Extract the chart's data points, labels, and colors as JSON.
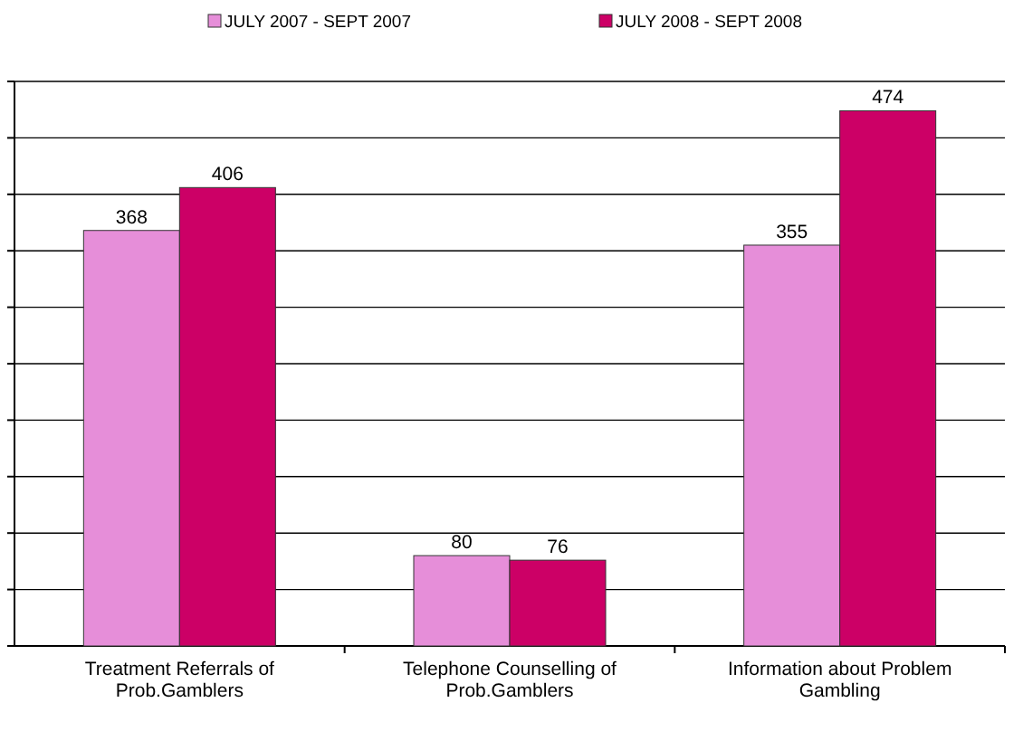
{
  "chart_data": {
    "type": "bar",
    "categories": [
      "Treatment Referrals of Prob.Gamblers",
      "Telephone Counselling of Prob.Gamblers",
      "Information about Problem Gambling"
    ],
    "series": [
      {
        "name": "JULY 2007 - SEPT 2007",
        "color": "#e68ed9",
        "values": [
          368,
          80,
          355
        ]
      },
      {
        "name": "JULY 2008 - SEPT 2008",
        "color": "#cc0066",
        "values": [
          406,
          76,
          474
        ]
      }
    ],
    "ylim": [
      0,
      500
    ],
    "yticks": [
      {
        "value": 0,
        "label": null
      },
      {
        "value": 50,
        "label": null
      },
      {
        "value": 100,
        "label": null
      },
      {
        "value": 150,
        "label": null
      },
      {
        "value": 200,
        "label": null
      },
      {
        "value": 250,
        "label": null
      },
      {
        "value": 300,
        "label": null
      },
      {
        "value": 350,
        "label": null
      },
      {
        "value": 400,
        "label": null
      },
      {
        "value": 450,
        "label": null
      },
      {
        "value": 500,
        "label": null
      }
    ],
    "grid": "y",
    "legend": "top",
    "data_labels": true,
    "tick_labels": "x"
  }
}
